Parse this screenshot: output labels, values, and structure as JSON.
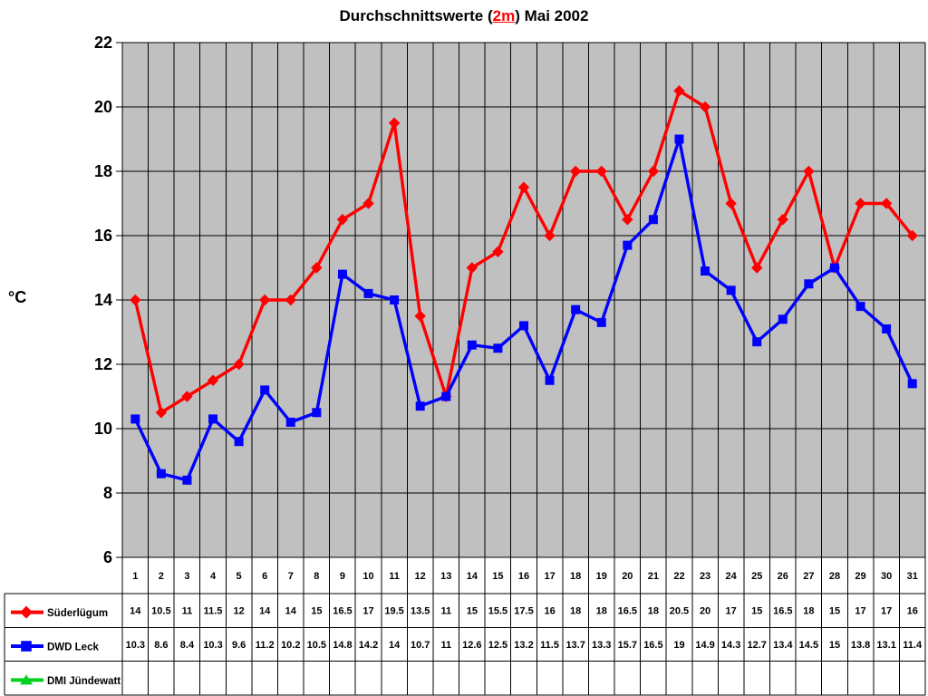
{
  "title": {
    "prefix": "Durchschnittswerte (",
    "highlight": "2m",
    "suffix": ") Mai 2002",
    "highlight_color": "#FF0000"
  },
  "y_axis": {
    "label": "°C",
    "min": 6,
    "max": 22,
    "step": 2,
    "tick_labels": [
      "22",
      "20",
      "18",
      "16",
      "14",
      "12",
      "10",
      "8",
      "6"
    ]
  },
  "colors": {
    "plot_background": "#C0C0C0",
    "grid": "#000000",
    "series_red": "#FF0000",
    "series_blue": "#0000FF",
    "series_green": "#00D21E"
  },
  "chart_data": {
    "type": "line",
    "x": [
      1,
      2,
      3,
      4,
      5,
      6,
      7,
      8,
      9,
      10,
      11,
      12,
      13,
      14,
      15,
      16,
      17,
      18,
      19,
      20,
      21,
      22,
      23,
      24,
      25,
      26,
      27,
      28,
      29,
      30,
      31
    ],
    "title": "Durchschnittswerte (2m) Mai 2002",
    "xlabel": "",
    "ylabel": "°C",
    "ylim": [
      6,
      22
    ],
    "grid": true,
    "legend_position": "bottom-table",
    "series": [
      {
        "name": "Süderlügum",
        "color": "#FF0000",
        "marker": "diamond",
        "values": [
          14,
          10.5,
          11,
          11.5,
          12,
          14,
          14,
          15,
          16.5,
          17,
          19.5,
          13.5,
          11,
          15,
          15.5,
          17.5,
          16,
          18,
          18,
          16.5,
          18,
          20.5,
          20,
          17,
          15,
          16.5,
          18,
          15,
          17,
          17,
          16
        ]
      },
      {
        "name": "DWD Leck",
        "color": "#0000FF",
        "marker": "square",
        "values": [
          10.3,
          8.6,
          8.4,
          10.3,
          9.6,
          11.2,
          10.2,
          10.5,
          14.8,
          14.2,
          14,
          10.7,
          11,
          12.6,
          12.5,
          13.2,
          11.5,
          13.7,
          13.3,
          15.7,
          16.5,
          19,
          14.9,
          14.3,
          12.7,
          13.4,
          14.5,
          15,
          13.8,
          13.1,
          11.4
        ]
      },
      {
        "name": "DMI Jündewatt",
        "color": "#00D21E",
        "marker": "triangle",
        "values": []
      }
    ]
  }
}
